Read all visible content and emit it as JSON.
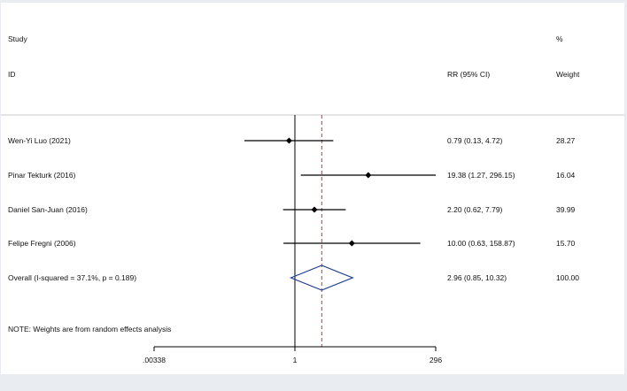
{
  "chart_data": {
    "type": "forest",
    "header": {
      "study_line1": "Study",
      "study_line2": "ID",
      "effect": "RR (95% CI)",
      "weight_line1": "%",
      "weight_line2": "Weight"
    },
    "studies": [
      {
        "label": "Wen-Yi Luo (2021)",
        "rr": 0.79,
        "lower": 0.13,
        "upper": 4.72,
        "ci_text": "0.79 (0.13, 4.72)",
        "weight": "28.27"
      },
      {
        "label": "Pinar Tekturk (2016)",
        "rr": 19.38,
        "lower": 1.27,
        "upper": 296.15,
        "ci_text": "19.38 (1.27, 296.15)",
        "weight": "16.04"
      },
      {
        "label": "Daniel San-Juan (2016)",
        "rr": 2.2,
        "lower": 0.62,
        "upper": 7.79,
        "ci_text": "2.20 (0.62, 7.79)",
        "weight": "39.99"
      },
      {
        "label": "Felipe Fregni (2006)",
        "rr": 10.0,
        "lower": 0.63,
        "upper": 158.87,
        "ci_text": "10.00 (0.63, 158.87)",
        "weight": "15.70"
      }
    ],
    "overall": {
      "label": "Overall  (I-squared = 37.1%, p = 0.189)",
      "rr": 2.96,
      "lower": 0.85,
      "upper": 10.32,
      "ci_text": "2.96 (0.85, 10.32)",
      "weight": "100.00"
    },
    "note": "NOTE: Weights are from random effects analysis",
    "x_axis": {
      "scale": "log",
      "ticks": [
        {
          "value": 0.00338,
          "label": ".00338"
        },
        {
          "value": 1,
          "label": "1"
        },
        {
          "value": 296,
          "label": "296"
        }
      ]
    },
    "colors": {
      "background": "#ffffff",
      "outer": "#e9edf2",
      "ci_line": "#000000",
      "diamond": "#1f3f8f",
      "overall_line": "#c0392b"
    }
  }
}
